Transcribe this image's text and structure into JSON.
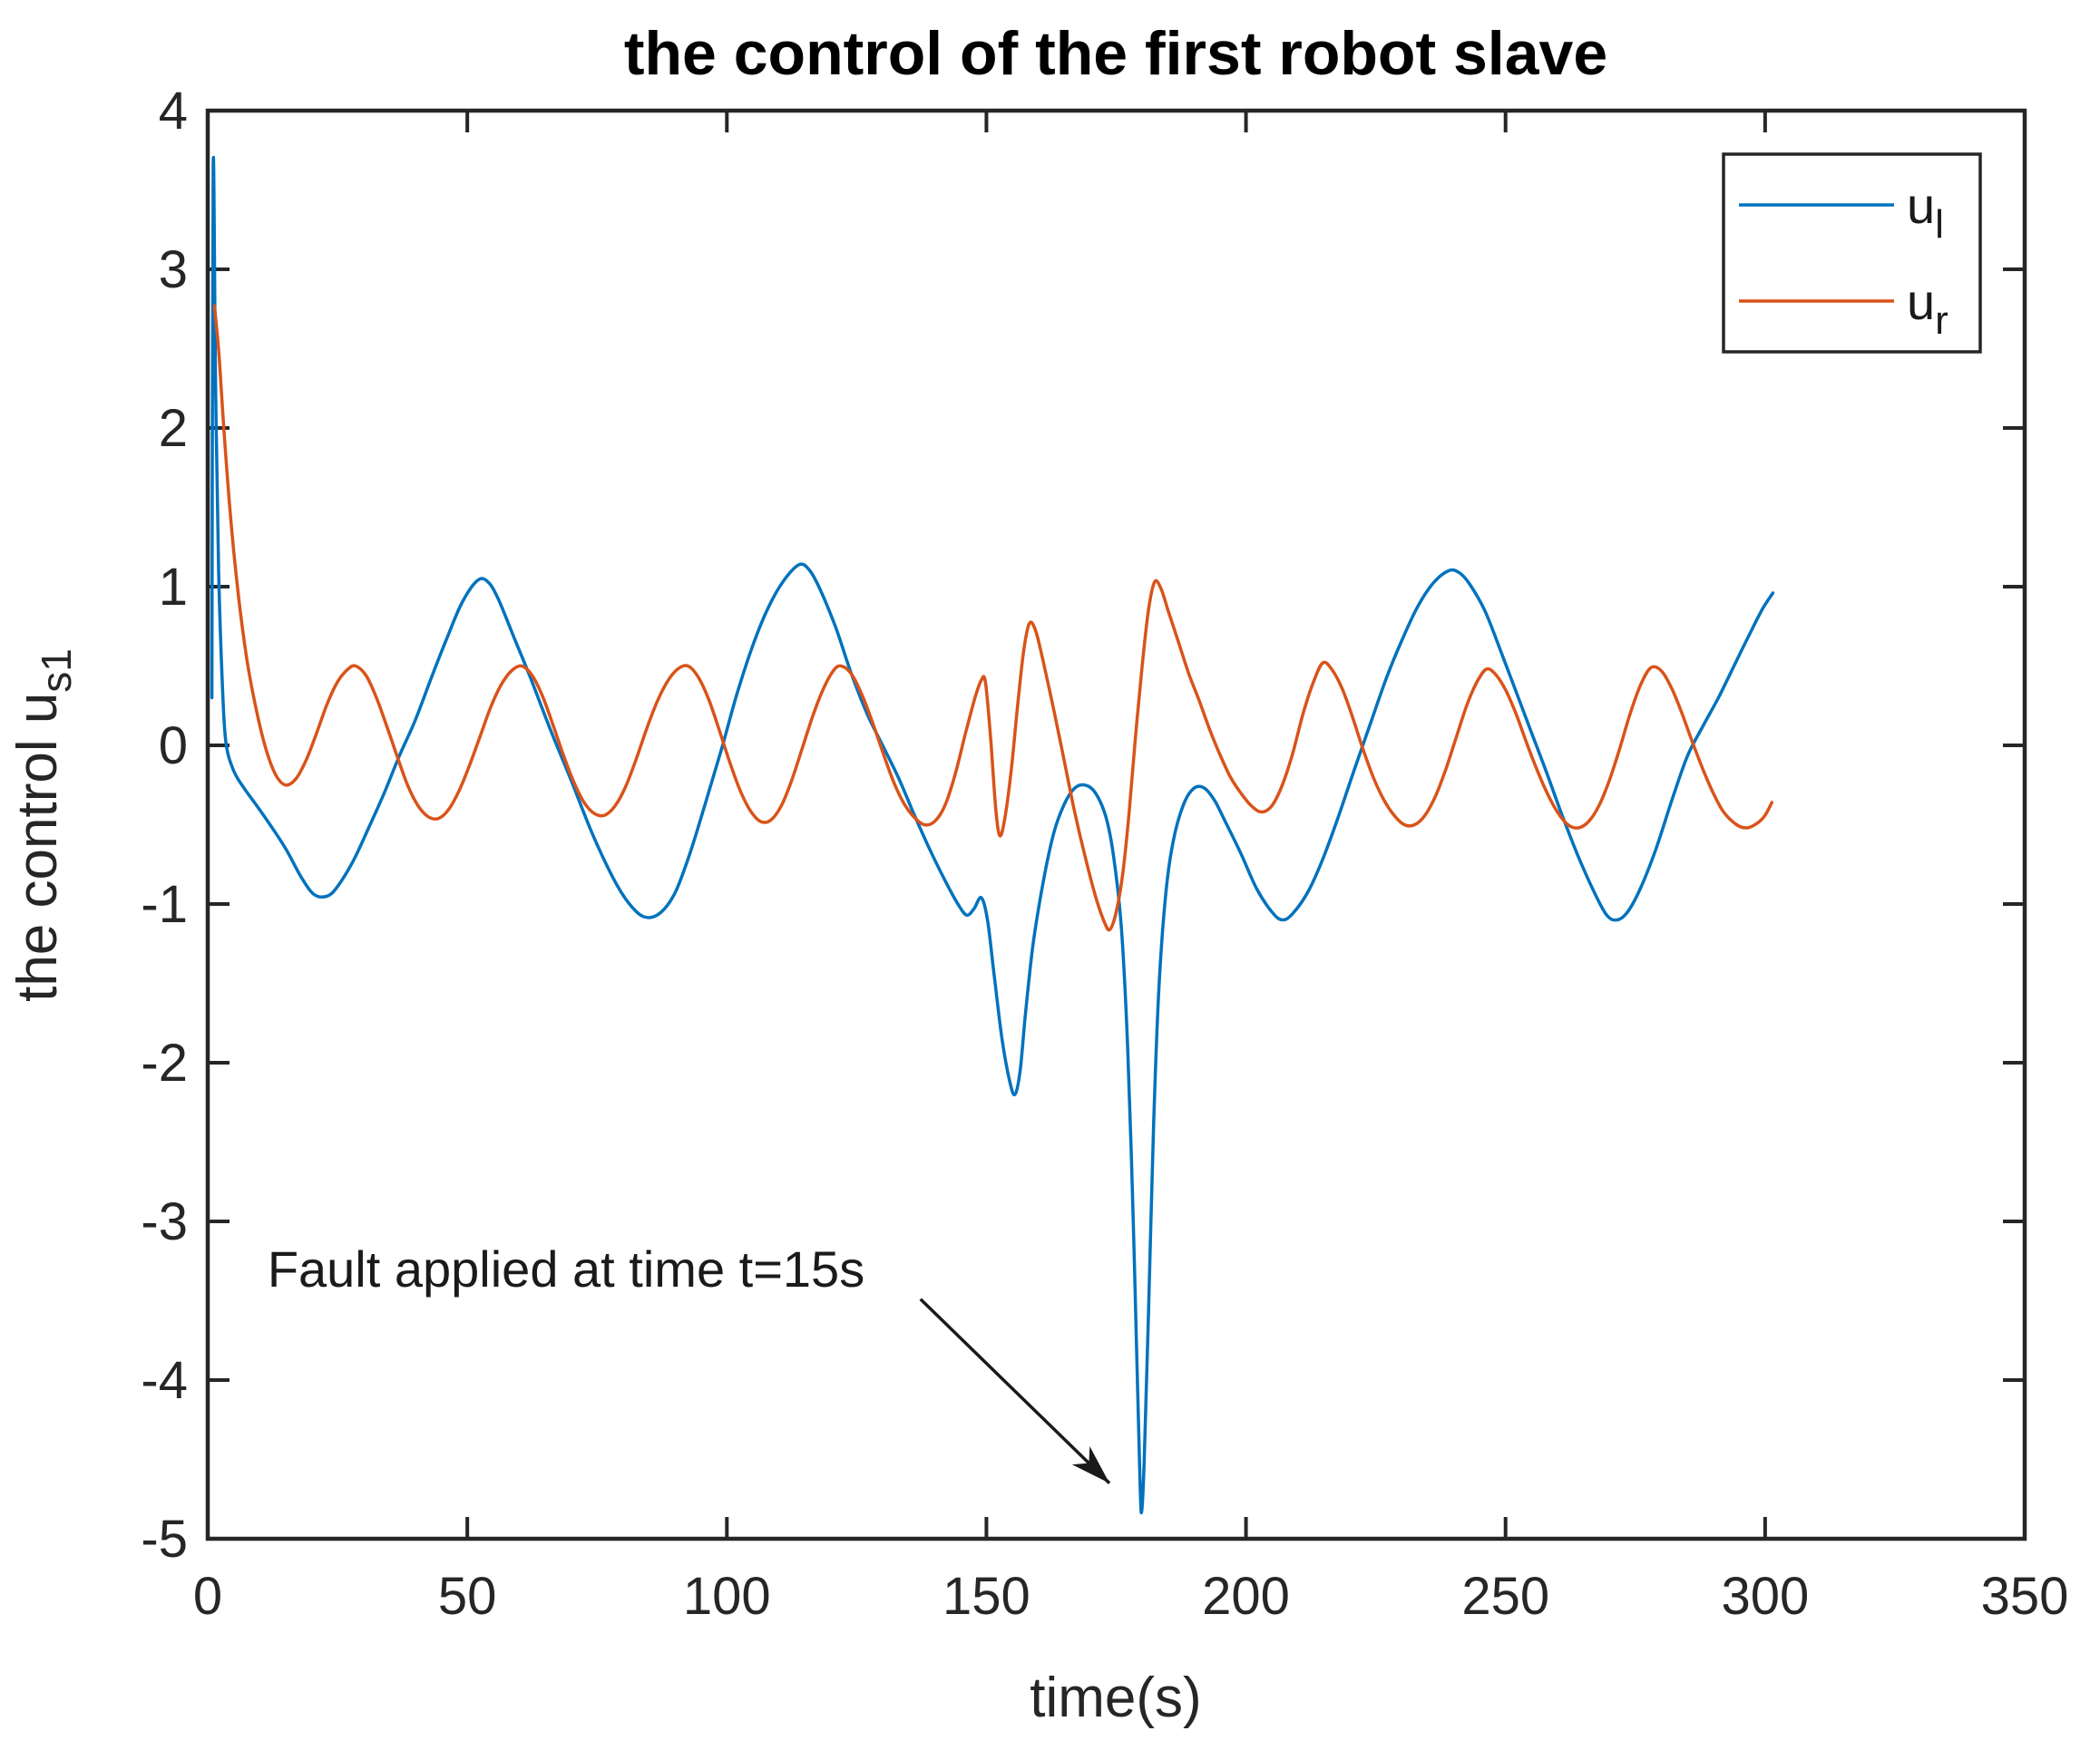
{
  "chart_data": {
    "type": "line",
    "title": "the control of the first robot slave",
    "xlabel": "time(s)",
    "ylabel_base": "the control u",
    "ylabel_sub": "s1",
    "xlim": [
      0,
      350
    ],
    "ylim": [
      -5,
      4
    ],
    "x_ticks": [
      0,
      50,
      100,
      150,
      200,
      250,
      300,
      350
    ],
    "y_ticks": [
      -5,
      -4,
      -3,
      -2,
      -1,
      0,
      1,
      2,
      3,
      4
    ],
    "grid": false,
    "legend_position": "top-right",
    "axis_color": "#262626",
    "background": "#ffffff",
    "series": [
      {
        "name": "u_l",
        "label_base": "u",
        "label_sub": "l",
        "color": "#0072BD",
        "points": [
          [
            0.8,
            0.3
          ],
          [
            1.05,
            3.65
          ],
          [
            1.5,
            2.3
          ],
          [
            2.1,
            1.1
          ],
          [
            2.8,
            0.4
          ],
          [
            3.5,
            0.02
          ],
          [
            5,
            -0.16
          ],
          [
            7,
            -0.27
          ],
          [
            9,
            -0.36
          ],
          [
            12,
            -0.5
          ],
          [
            15,
            -0.65
          ],
          [
            18,
            -0.83
          ],
          [
            20.5,
            -0.94
          ],
          [
            23,
            -0.95
          ],
          [
            25,
            -0.89
          ],
          [
            28,
            -0.73
          ],
          [
            31,
            -0.52
          ],
          [
            34,
            -0.3
          ],
          [
            37,
            -0.06
          ],
          [
            40,
            0.16
          ],
          [
            43,
            0.42
          ],
          [
            46,
            0.67
          ],
          [
            49,
            0.9
          ],
          [
            52,
            1.04
          ],
          [
            54,
            1.03
          ],
          [
            56,
            0.92
          ],
          [
            59,
            0.68
          ],
          [
            62,
            0.44
          ],
          [
            66,
            0.1
          ],
          [
            70,
            -0.22
          ],
          [
            74,
            -0.55
          ],
          [
            78,
            -0.83
          ],
          [
            81,
            -0.99
          ],
          [
            84,
            -1.08
          ],
          [
            87,
            -1.06
          ],
          [
            90,
            -0.93
          ],
          [
            93,
            -0.67
          ],
          [
            96,
            -0.35
          ],
          [
            99,
            -0.02
          ],
          [
            102,
            0.33
          ],
          [
            105,
            0.63
          ],
          [
            108,
            0.87
          ],
          [
            111,
            1.04
          ],
          [
            114,
            1.14
          ],
          [
            116,
            1.1
          ],
          [
            118,
            0.98
          ],
          [
            121,
            0.74
          ],
          [
            124,
            0.45
          ],
          [
            127,
            0.2
          ],
          [
            130,
            0.0
          ],
          [
            133,
            -0.2
          ],
          [
            136,
            -0.43
          ],
          [
            139,
            -0.65
          ],
          [
            142,
            -0.85
          ],
          [
            144.5,
            -1.0
          ],
          [
            146.2,
            -1.07
          ],
          [
            147.6,
            -1.03
          ],
          [
            149,
            -0.96
          ],
          [
            150.2,
            -1.1
          ],
          [
            151.5,
            -1.45
          ],
          [
            153,
            -1.85
          ],
          [
            154.5,
            -2.12
          ],
          [
            155.5,
            -2.2
          ],
          [
            156.5,
            -2.05
          ],
          [
            157.5,
            -1.7
          ],
          [
            159,
            -1.25
          ],
          [
            161,
            -0.85
          ],
          [
            163,
            -0.55
          ],
          [
            165,
            -0.37
          ],
          [
            167,
            -0.27
          ],
          [
            169,
            -0.25
          ],
          [
            171,
            -0.3
          ],
          [
            173,
            -0.45
          ],
          [
            174.5,
            -0.7
          ],
          [
            176,
            -1.15
          ],
          [
            177.2,
            -1.9
          ],
          [
            178.2,
            -2.9
          ],
          [
            179,
            -3.9
          ],
          [
            179.6,
            -4.65
          ],
          [
            179.9,
            -4.83
          ],
          [
            180.4,
            -4.5
          ],
          [
            181.2,
            -3.6
          ],
          [
            182.2,
            -2.4
          ],
          [
            183.2,
            -1.55
          ],
          [
            184.5,
            -0.95
          ],
          [
            186,
            -0.6
          ],
          [
            188,
            -0.37
          ],
          [
            190,
            -0.27
          ],
          [
            192,
            -0.27
          ],
          [
            194,
            -0.35
          ],
          [
            196,
            -0.48
          ],
          [
            199,
            -0.68
          ],
          [
            202,
            -0.9
          ],
          [
            205,
            -1.05
          ],
          [
            207,
            -1.1
          ],
          [
            209,
            -1.06
          ],
          [
            212,
            -0.92
          ],
          [
            215,
            -0.7
          ],
          [
            218,
            -0.43
          ],
          [
            221,
            -0.14
          ],
          [
            224,
            0.14
          ],
          [
            227,
            0.42
          ],
          [
            230,
            0.66
          ],
          [
            233,
            0.87
          ],
          [
            236,
            1.02
          ],
          [
            239,
            1.1
          ],
          [
            241,
            1.09
          ],
          [
            243,
            1.02
          ],
          [
            246,
            0.85
          ],
          [
            249,
            0.6
          ],
          [
            252,
            0.34
          ],
          [
            255,
            0.08
          ],
          [
            258,
            -0.18
          ],
          [
            261,
            -0.45
          ],
          [
            264,
            -0.7
          ],
          [
            267,
            -0.92
          ],
          [
            269.5,
            -1.07
          ],
          [
            271.5,
            -1.1
          ],
          [
            273.5,
            -1.05
          ],
          [
            276,
            -0.9
          ],
          [
            279,
            -0.65
          ],
          [
            282,
            -0.35
          ],
          [
            285,
            -0.07
          ],
          [
            288,
            0.12
          ],
          [
            291,
            0.3
          ],
          [
            294,
            0.5
          ],
          [
            297,
            0.7
          ],
          [
            299.5,
            0.86
          ],
          [
            301.5,
            0.96
          ]
        ]
      },
      {
        "name": "u_r",
        "label_base": "u",
        "label_sub": "r",
        "color": "#D95319",
        "points": [
          [
            1.3,
            2.77
          ],
          [
            2.2,
            2.45
          ],
          [
            3.2,
            1.95
          ],
          [
            4.5,
            1.4
          ],
          [
            6,
            0.92
          ],
          [
            7.5,
            0.55
          ],
          [
            9,
            0.28
          ],
          [
            11,
            0.0
          ],
          [
            13,
            -0.18
          ],
          [
            15,
            -0.25
          ],
          [
            17,
            -0.21
          ],
          [
            19,
            -0.09
          ],
          [
            21,
            0.08
          ],
          [
            23,
            0.26
          ],
          [
            25,
            0.4
          ],
          [
            27,
            0.48
          ],
          [
            28.5,
            0.5
          ],
          [
            30.5,
            0.44
          ],
          [
            32.5,
            0.3
          ],
          [
            34.5,
            0.12
          ],
          [
            36.5,
            -0.07
          ],
          [
            38.5,
            -0.25
          ],
          [
            40.5,
            -0.38
          ],
          [
            42.5,
            -0.45
          ],
          [
            44.5,
            -0.46
          ],
          [
            46.5,
            -0.4
          ],
          [
            48.5,
            -0.28
          ],
          [
            50.5,
            -0.12
          ],
          [
            52.5,
            0.06
          ],
          [
            54.5,
            0.24
          ],
          [
            56.5,
            0.38
          ],
          [
            58.5,
            0.47
          ],
          [
            60.5,
            0.5
          ],
          [
            62.5,
            0.44
          ],
          [
            64.5,
            0.31
          ],
          [
            66.5,
            0.13
          ],
          [
            68.5,
            -0.06
          ],
          [
            70.5,
            -0.23
          ],
          [
            72.5,
            -0.36
          ],
          [
            74.5,
            -0.43
          ],
          [
            76.5,
            -0.44
          ],
          [
            78.5,
            -0.38
          ],
          [
            80.5,
            -0.26
          ],
          [
            82.5,
            -0.09
          ],
          [
            84.5,
            0.1
          ],
          [
            86.5,
            0.27
          ],
          [
            88.5,
            0.4
          ],
          [
            90.5,
            0.48
          ],
          [
            92.5,
            0.5
          ],
          [
            94.5,
            0.43
          ],
          [
            96.5,
            0.29
          ],
          [
            98.5,
            0.1
          ],
          [
            100.5,
            -0.1
          ],
          [
            102.5,
            -0.28
          ],
          [
            104.5,
            -0.41
          ],
          [
            106.5,
            -0.48
          ],
          [
            108.5,
            -0.47
          ],
          [
            110.5,
            -0.38
          ],
          [
            112.5,
            -0.22
          ],
          [
            114.5,
            -0.02
          ],
          [
            116.5,
            0.18
          ],
          [
            118.5,
            0.35
          ],
          [
            120.5,
            0.47
          ],
          [
            122,
            0.5
          ],
          [
            124,
            0.45
          ],
          [
            126,
            0.32
          ],
          [
            128,
            0.15
          ],
          [
            130,
            -0.04
          ],
          [
            132,
            -0.22
          ],
          [
            134,
            -0.36
          ],
          [
            136,
            -0.45
          ],
          [
            138,
            -0.5
          ],
          [
            140,
            -0.48
          ],
          [
            142,
            -0.38
          ],
          [
            144,
            -0.18
          ],
          [
            146,
            0.08
          ],
          [
            147.8,
            0.3
          ],
          [
            149,
            0.41
          ],
          [
            149.8,
            0.4
          ],
          [
            150.8,
            0.05
          ],
          [
            151.8,
            -0.4
          ],
          [
            152.6,
            -0.57
          ],
          [
            153.6,
            -0.45
          ],
          [
            154.8,
            -0.15
          ],
          [
            156,
            0.25
          ],
          [
            157.2,
            0.6
          ],
          [
            158.3,
            0.77
          ],
          [
            159.5,
            0.72
          ],
          [
            161,
            0.52
          ],
          [
            163,
            0.22
          ],
          [
            165,
            -0.1
          ],
          [
            167,
            -0.42
          ],
          [
            169,
            -0.7
          ],
          [
            171,
            -0.95
          ],
          [
            172.8,
            -1.12
          ],
          [
            173.8,
            -1.16
          ],
          [
            175,
            -1.05
          ],
          [
            176.3,
            -0.8
          ],
          [
            177.5,
            -0.42
          ],
          [
            178.7,
            0.05
          ],
          [
            180,
            0.5
          ],
          [
            181.2,
            0.85
          ],
          [
            182.4,
            1.03
          ],
          [
            183.6,
            0.99
          ],
          [
            185,
            0.85
          ],
          [
            187,
            0.65
          ],
          [
            189,
            0.45
          ],
          [
            191,
            0.28
          ],
          [
            193,
            0.1
          ],
          [
            195,
            -0.06
          ],
          [
            197,
            -0.2
          ],
          [
            199,
            -0.3
          ],
          [
            201,
            -0.38
          ],
          [
            203,
            -0.42
          ],
          [
            205,
            -0.38
          ],
          [
            207,
            -0.25
          ],
          [
            209,
            -0.05
          ],
          [
            211,
            0.2
          ],
          [
            213,
            0.4
          ],
          [
            214.8,
            0.52
          ],
          [
            216.5,
            0.48
          ],
          [
            218.5,
            0.36
          ],
          [
            220.5,
            0.18
          ],
          [
            222.5,
            -0.02
          ],
          [
            224.5,
            -0.2
          ],
          [
            226.5,
            -0.34
          ],
          [
            228.5,
            -0.44
          ],
          [
            230.5,
            -0.5
          ],
          [
            232.5,
            -0.5
          ],
          [
            234.5,
            -0.44
          ],
          [
            236.5,
            -0.32
          ],
          [
            238.5,
            -0.15
          ],
          [
            240.5,
            0.05
          ],
          [
            242.5,
            0.25
          ],
          [
            244.5,
            0.4
          ],
          [
            246.3,
            0.48
          ],
          [
            248,
            0.45
          ],
          [
            250,
            0.35
          ],
          [
            252,
            0.2
          ],
          [
            254,
            0.02
          ],
          [
            256,
            -0.15
          ],
          [
            258,
            -0.3
          ],
          [
            260,
            -0.42
          ],
          [
            262,
            -0.5
          ],
          [
            264,
            -0.52
          ],
          [
            266,
            -0.48
          ],
          [
            268,
            -0.38
          ],
          [
            270,
            -0.22
          ],
          [
            272,
            -0.02
          ],
          [
            274,
            0.2
          ],
          [
            276,
            0.38
          ],
          [
            278,
            0.49
          ],
          [
            280,
            0.47
          ],
          [
            282,
            0.36
          ],
          [
            284,
            0.2
          ],
          [
            286,
            0.02
          ],
          [
            288,
            -0.15
          ],
          [
            290,
            -0.3
          ],
          [
            292,
            -0.42
          ],
          [
            294.5,
            -0.5
          ],
          [
            296.5,
            -0.52
          ],
          [
            298.5,
            -0.49
          ],
          [
            300,
            -0.44
          ],
          [
            301.3,
            -0.36
          ]
        ]
      }
    ]
  },
  "annotation": {
    "text": "Fault applied at time t=15s",
    "text_t": 11.5,
    "text_u": -3.41,
    "arrow_from_t": 137.3,
    "arrow_from_u": -3.49,
    "arrow_to_t": 173.7,
    "arrow_to_u": -4.65,
    "color": "#1a1a1a"
  }
}
